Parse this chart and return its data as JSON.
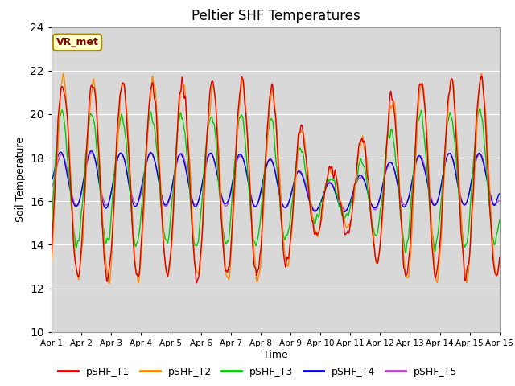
{
  "title": "Peltier SHF Temperatures",
  "xlabel": "Time",
  "ylabel": "Soil Temperature",
  "ylim": [
    10,
    24
  ],
  "colors": {
    "T1": "#dd0000",
    "T2": "#ff8800",
    "T3": "#00cc00",
    "T4": "#0000dd",
    "T5": "#bb44cc"
  },
  "annotation_text": "VR_met",
  "annotation_bg": "#ffffcc",
  "annotation_border": "#aa8800",
  "background_color": "#d8d8d8",
  "title_fontsize": 12,
  "axis_fontsize": 9,
  "legend_fontsize": 9,
  "x_tick_labels": [
    "Apr 1",
    "Apr 2",
    "Apr 3",
    "Apr 4",
    "Apr 5",
    "Apr 6",
    "Apr 7",
    "Apr 8",
    "Apr 9",
    "Apr 10",
    "Apr 11",
    "Apr 12",
    "Apr 13",
    "Apr 14",
    "Apr 15",
    "Apr 16"
  ]
}
